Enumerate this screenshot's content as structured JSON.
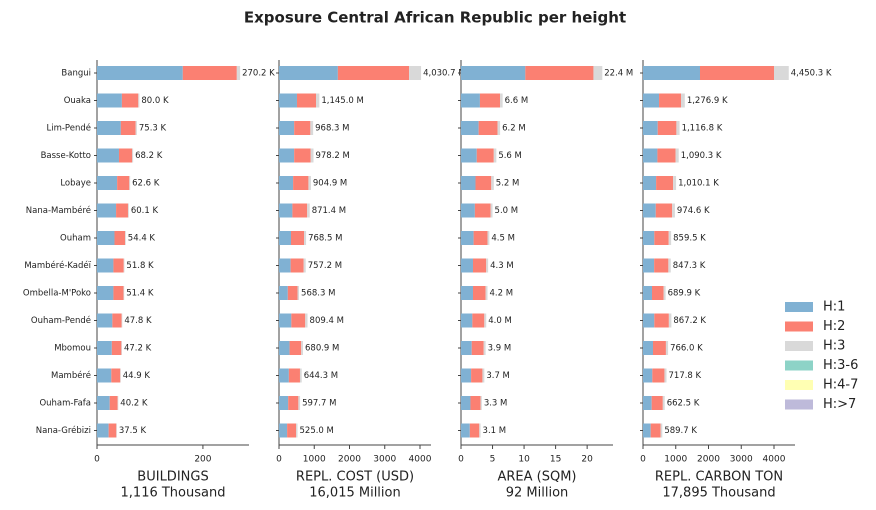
{
  "chart_data": {
    "type": "bar",
    "title": "Exposure Central African Republic per height",
    "categories": [
      "Bangui",
      "Ouaka",
      "Lim-Pendé",
      "Basse-Kotto",
      "Lobaye",
      "Nana-Mambéré",
      "Ouham",
      "Mambéré-Kadéï",
      "Ombella-M'Poko",
      "Ouham-Pendé",
      "Mbomou",
      "Mambéré",
      "Ouham-Fafa",
      "Nana-Grébizi"
    ],
    "legend": [
      {
        "name": "H:1",
        "color": "#80b1d3"
      },
      {
        "name": "H:2",
        "color": "#fb8072"
      },
      {
        "name": "H:3",
        "color": "#d9d9d9"
      },
      {
        "name": "H:3-6",
        "color": "#8dd3c7"
      },
      {
        "name": "H:4-7",
        "color": "#ffffb3"
      },
      {
        "name": "H:>7",
        "color": "#bebada"
      }
    ],
    "panels": [
      {
        "xlabel": "BUILDINGS",
        "subtitle": "1,116 Thousand",
        "xlim": [
          0,
          287
        ],
        "xticks": [
          0,
          200
        ],
        "series": [
          {
            "values": [
              162,
              47,
              45,
              41.5,
              38,
              36,
              33,
              31,
              31,
              29,
              28,
              27,
              24,
              22
            ]
          },
          {
            "values": [
              102,
              31,
              28,
              25,
              23,
              22.5,
              20,
              19.5,
              19,
              17.6,
              18,
              17,
              15,
              14.5
            ]
          },
          {
            "values": [
              6.2,
              2.0,
              2.3,
              1.7,
              1.6,
              1.6,
              1.4,
              1.3,
              1.4,
              1.2,
              1.2,
              0.9,
              1.2,
              1.0
            ]
          }
        ],
        "totals": [
          270.2,
          80.0,
          75.3,
          68.2,
          62.6,
          60.1,
          54.4,
          51.8,
          51.4,
          47.8,
          47.2,
          44.9,
          40.2,
          37.5
        ],
        "value_labels": [
          "270.2 K",
          "80.0 K",
          "75.3 K",
          "68.2 K",
          "62.6 K",
          "60.1 K",
          "54.4 K",
          "51.8 K",
          "51.4 K",
          "47.8 K",
          "47.2 K",
          "44.9 K",
          "40.2 K",
          "37.5 K"
        ]
      },
      {
        "xlabel": "REPL. COST (USD)",
        "subtitle": "16,015 Million",
        "xlim": [
          0,
          4312
        ],
        "xticks": [
          0,
          1000,
          2000,
          3000,
          4000
        ],
        "series": [
          {
            "values": [
              1670,
              510,
              430,
              430,
              400,
              380,
              340,
              330,
              250,
              350,
              300,
              280,
              260,
              230
            ]
          },
          {
            "values": [
              2020,
              540,
              460,
              470,
              435,
              420,
              370,
              370,
              275,
              395,
              330,
              315,
              290,
              255
            ]
          },
          {
            "values": [
              340.7,
              95,
              78.3,
              78.2,
              69.9,
              71.4,
              58.5,
              57.2,
              43.3,
              64.4,
              50.9,
              49.3,
              47.7,
              40
            ]
          }
        ],
        "totals": [
          4030.7,
          1145.0,
          968.3,
          978.2,
          904.9,
          871.4,
          768.5,
          757.2,
          568.3,
          809.4,
          680.9,
          644.3,
          597.7,
          525.0
        ],
        "value_labels": [
          "4,030.7 M",
          "1,145.0 M",
          "968.3 M",
          "978.2 M",
          "904.9 M",
          "871.4 M",
          "768.5 M",
          "757.2 M",
          "568.3 M",
          "809.4 M",
          "680.9 M",
          "644.3 M",
          "597.7 M",
          "525.0 M"
        ]
      },
      {
        "xlabel": "AREA (SQM)",
        "subtitle": "92 Million",
        "xlim": [
          0,
          24.1
        ],
        "xticks": [
          0,
          5,
          10,
          15,
          20
        ],
        "series": [
          {
            "values": [
              10.2,
              3.0,
              2.8,
              2.5,
              2.3,
              2.2,
              2.0,
              1.9,
              1.9,
              1.8,
              1.7,
              1.6,
              1.5,
              1.4
            ]
          },
          {
            "values": [
              10.8,
              3.2,
              3.0,
              2.7,
              2.5,
              2.5,
              2.2,
              2.1,
              2.0,
              1.9,
              1.9,
              1.8,
              1.6,
              1.5
            ]
          },
          {
            "values": [
              1.4,
              0.4,
              0.4,
              0.4,
              0.4,
              0.3,
              0.3,
              0.3,
              0.3,
              0.3,
              0.3,
              0.3,
              0.2,
              0.2
            ]
          }
        ],
        "totals": [
          22.4,
          6.6,
          6.2,
          5.6,
          5.2,
          5.0,
          4.5,
          4.3,
          4.2,
          4.0,
          3.9,
          3.7,
          3.3,
          3.1
        ],
        "value_labels": [
          "22.4 M",
          "6.6 M",
          "6.2 M",
          "5.6 M",
          "5.2 M",
          "5.0 M",
          "4.5 M",
          "4.3 M",
          "4.2 M",
          "4.0 M",
          "3.9 M",
          "3.7 M",
          "3.3 M",
          "3.1 M"
        ]
      },
      {
        "xlabel": "REPL. CARBON TON",
        "subtitle": "17,895 Thousand",
        "xlim": [
          0,
          4641
        ],
        "xticks": [
          0,
          1000,
          2000,
          3000,
          4000
        ],
        "series": [
          {
            "values": [
              1740,
              490,
              450,
              440,
              400,
              390,
              345,
              340,
              275,
              345,
              305,
              285,
              265,
              235
            ]
          },
          {
            "values": [
              2260,
              670,
              570,
              555,
              520,
              500,
              440,
              435,
              355,
              445,
              395,
              370,
              340,
              305
            ]
          },
          {
            "values": [
              450.3,
              116.9,
              96.8,
              95.3,
              90.1,
              84.6,
              74.5,
              72.3,
              59.9,
              77.2,
              66,
              62.8,
              57.5,
              49.7
            ]
          }
        ],
        "totals": [
          4450.3,
          1276.9,
          1116.8,
          1090.3,
          1010.1,
          974.6,
          859.5,
          847.3,
          689.9,
          867.2,
          766.0,
          717.8,
          662.5,
          589.7
        ],
        "value_labels": [
          "4,450.3 K",
          "1,276.9 K",
          "1,116.8 K",
          "1,090.3 K",
          "1,010.1 K",
          "974.6 K",
          "859.5 K",
          "847.3 K",
          "689.9 K",
          "867.2 K",
          "766.0 K",
          "717.8 K",
          "662.5 K",
          "589.7 K"
        ]
      }
    ]
  }
}
